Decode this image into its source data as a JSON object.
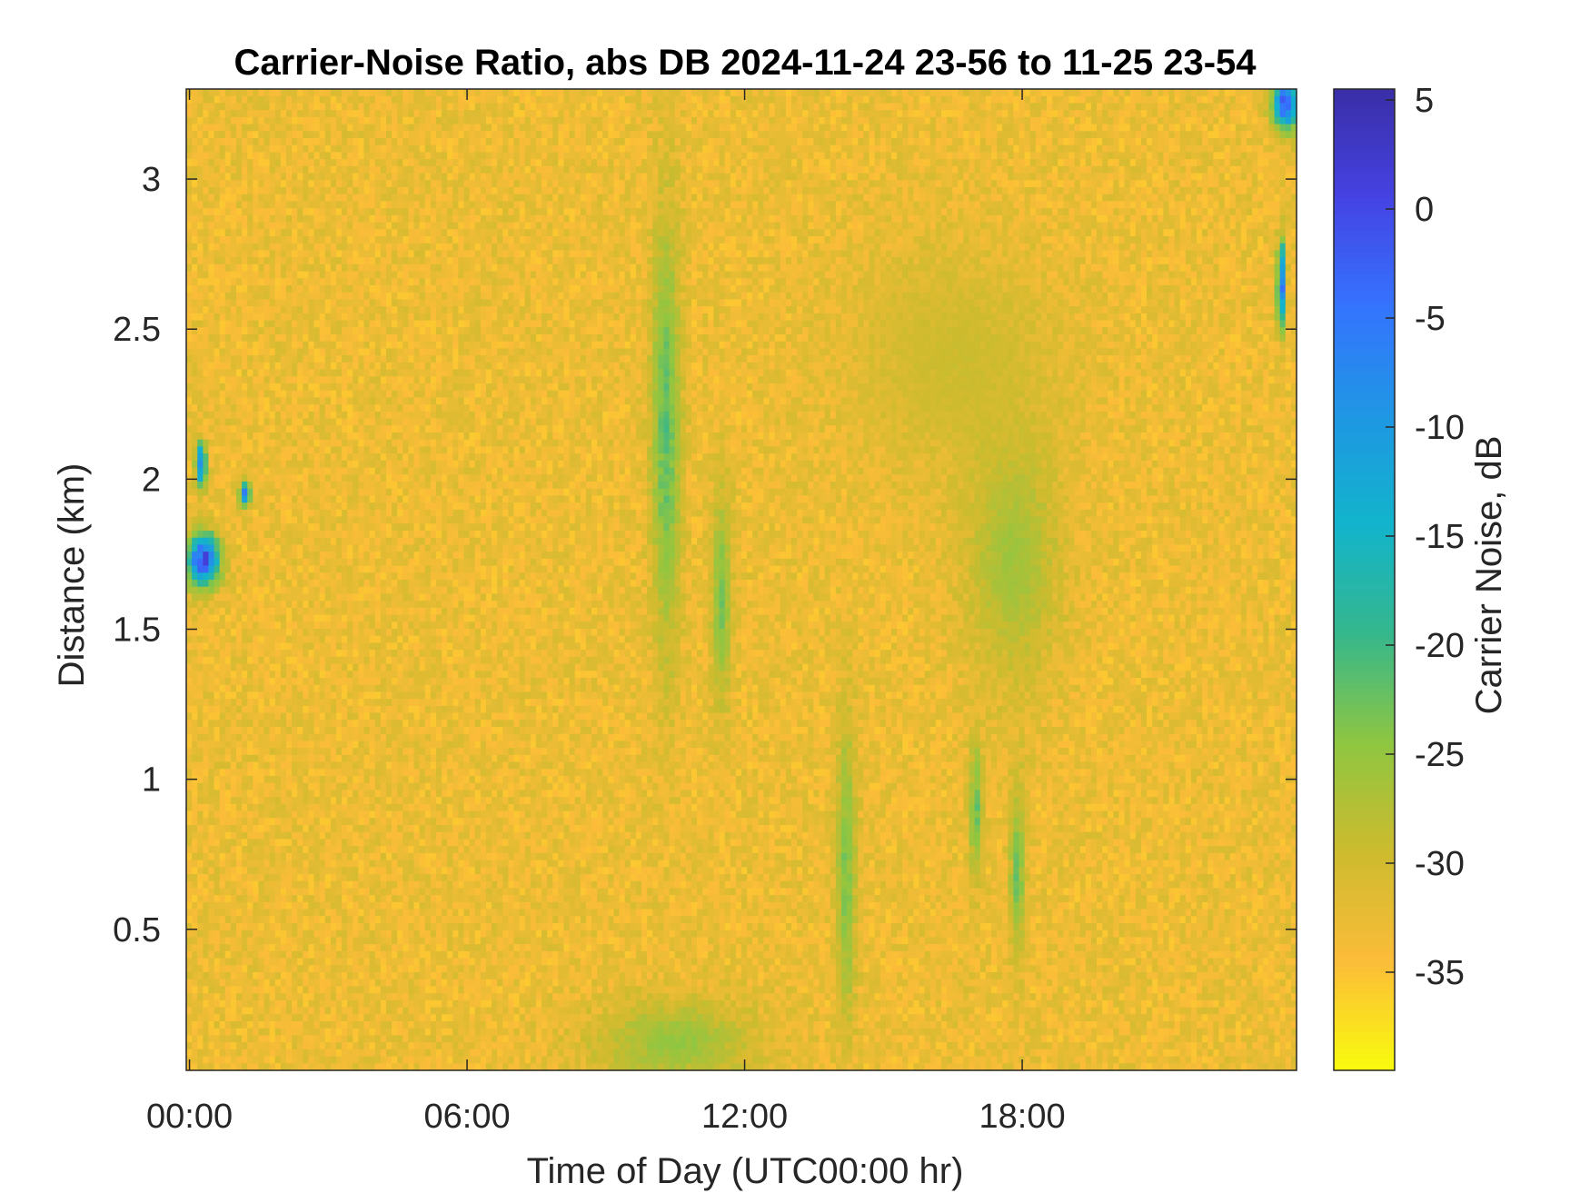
{
  "chart_data": {
    "type": "heatmap",
    "title": "Carrier-Noise Ratio, abs DB 2024-11-24 23-56 to 11-25 23-54",
    "xlabel": "Time of Day (UTC00:00 hr)",
    "ylabel": "Distance (km)",
    "colorbar_label": "Carrier Noise, dB",
    "x_units": "hours",
    "xlim": [
      -0.07,
      23.93
    ],
    "ylim": [
      0.03,
      3.3
    ],
    "clim": [
      -39.5,
      5.5
    ],
    "x_ticks": [
      0,
      6,
      12,
      18
    ],
    "x_tick_labels": [
      "00:00",
      "06:00",
      "12:00",
      "18:00"
    ],
    "y_ticks": [
      0.5,
      1,
      1.5,
      2,
      2.5,
      3
    ],
    "y_tick_labels": [
      "0.5",
      "1",
      "1.5",
      "2",
      "2.5",
      "3"
    ],
    "colorbar_ticks": [
      5,
      0,
      -5,
      -10,
      -15,
      -20,
      -25,
      -30,
      -35
    ],
    "colorbar_tick_labels": [
      "5",
      "0",
      "-5",
      "-10",
      "-15",
      "-20",
      "-25",
      "-30",
      "-35"
    ],
    "colormap": "parula (reversed: yellow = low, dark blue = high)",
    "colormap_stops": [
      "#f9fb0e",
      "#fbbc39",
      "#cdbb2e",
      "#8fc641",
      "#36b78c",
      "#12b4cb",
      "#1f97e3",
      "#3574fe",
      "#4543e3",
      "#3a2ea6"
    ],
    "background_level_db": -33,
    "features": [
      {
        "x": 0.3,
        "y": 1.73,
        "sx": 0.25,
        "sy": 0.06,
        "db": 4,
        "desc": "strong return near 00:20"
      },
      {
        "x": 0.25,
        "y": 2.05,
        "sx": 0.08,
        "sy": 0.05,
        "db": -2
      },
      {
        "x": 1.2,
        "y": 1.95,
        "sx": 0.08,
        "sy": 0.03,
        "db": -4
      },
      {
        "x": 10.3,
        "y": 2.15,
        "sx": 0.22,
        "sy": 0.5,
        "db": -20,
        "desc": "vertical streak near 10:20"
      },
      {
        "x": 11.5,
        "y": 1.6,
        "sx": 0.15,
        "sy": 0.25,
        "db": -22
      },
      {
        "x": 10.5,
        "y": 0.12,
        "sx": 1.2,
        "sy": 0.1,
        "db": -24,
        "desc": "near-surface band 09:30-12:00"
      },
      {
        "x": 14.2,
        "y": 0.7,
        "sx": 0.15,
        "sy": 0.35,
        "db": -22
      },
      {
        "x": 17.8,
        "y": 1.75,
        "sx": 0.7,
        "sy": 0.3,
        "db": -25,
        "desc": "diffuse patch near 18:00"
      },
      {
        "x": 17.0,
        "y": 0.9,
        "sx": 0.1,
        "sy": 0.15,
        "db": -20
      },
      {
        "x": 17.9,
        "y": 0.7,
        "sx": 0.12,
        "sy": 0.2,
        "db": -21
      },
      {
        "x": 16.5,
        "y": 2.4,
        "sx": 1.5,
        "sy": 0.25,
        "db": -29
      },
      {
        "x": 23.7,
        "y": 3.25,
        "sx": 0.2,
        "sy": 0.06,
        "db": 2,
        "desc": "strong return top-right"
      },
      {
        "x": 23.6,
        "y": 2.65,
        "sx": 0.06,
        "sy": 0.1,
        "db": 0
      }
    ]
  }
}
